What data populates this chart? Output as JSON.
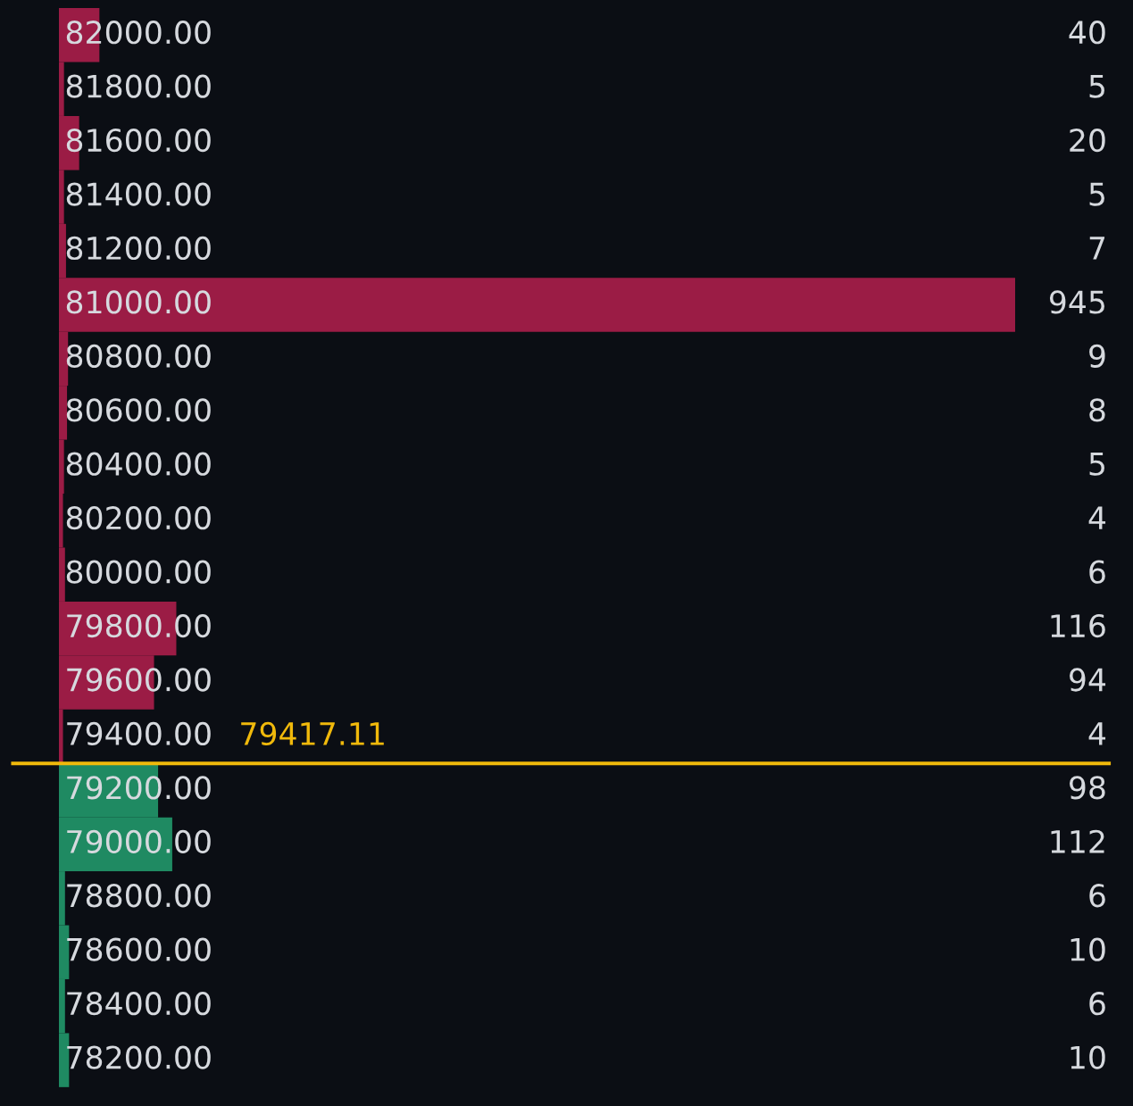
{
  "chart_data": {
    "type": "bar",
    "orientation": "horizontal",
    "categories": [
      "82000.00",
      "81800.00",
      "81600.00",
      "81400.00",
      "81200.00",
      "81000.00",
      "80800.00",
      "80600.00",
      "80400.00",
      "80200.00",
      "80000.00",
      "79800.00",
      "79600.00",
      "79400.00",
      "79200.00",
      "79000.00",
      "78800.00",
      "78600.00",
      "78400.00",
      "78200.00"
    ],
    "values": [
      40,
      5,
      20,
      5,
      7,
      945,
      9,
      8,
      5,
      4,
      6,
      116,
      94,
      4,
      98,
      112,
      6,
      10,
      6,
      10
    ],
    "colors": [
      "#9b1c45",
      "#9b1c45",
      "#9b1c45",
      "#9b1c45",
      "#9b1c45",
      "#9b1c45",
      "#9b1c45",
      "#9b1c45",
      "#9b1c45",
      "#9b1c45",
      "#9b1c45",
      "#9b1c45",
      "#9b1c45",
      "#9b1c45",
      "#1f8a62",
      "#1f8a62",
      "#1f8a62",
      "#1f8a62",
      "#1f8a62",
      "#1f8a62"
    ],
    "xlim": [
      0,
      945
    ],
    "data_labels": true,
    "ref_lines": [
      {
        "axis": "y",
        "value": "79400.00",
        "label": "79417.11",
        "color": "#f0b90b"
      }
    ]
  }
}
